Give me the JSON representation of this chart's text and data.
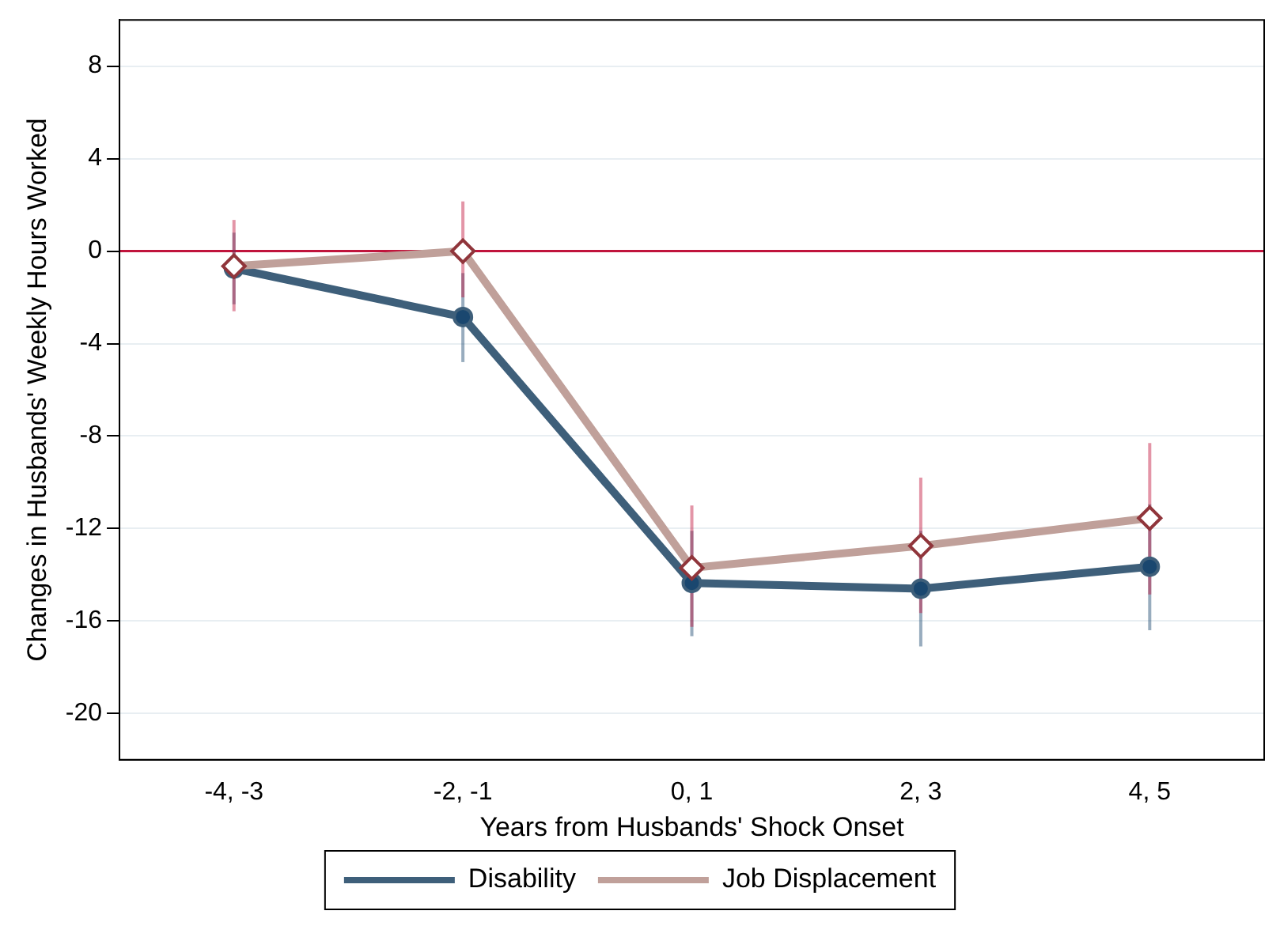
{
  "chart_data": {
    "type": "line",
    "xlabel": "Years from Husbands' Shock Onset",
    "ylabel": "Changes in Husbands' Weekly Hours Worked",
    "categories": [
      "-4, -3",
      "-2, -1",
      "0, 1",
      "2, 3",
      "4, 5"
    ],
    "series": [
      {
        "name": "Disability",
        "color": "#3e5f7a",
        "marker": "circle",
        "values": [
          -0.75,
          -2.85,
          -14.35,
          -14.6,
          -13.65
        ],
        "errors": [
          [
            -2.3,
            0.8
          ],
          [
            -4.8,
            -0.95
          ],
          [
            -16.65,
            -12.1
          ],
          [
            -17.1,
            -12.1
          ],
          [
            -16.4,
            -10.95
          ]
        ]
      },
      {
        "name": "Job Displacement",
        "color": "#c0a09a",
        "marker": "diamond",
        "values": [
          -0.65,
          0,
          -13.7,
          -12.75,
          -11.55
        ],
        "errors": [
          [
            -2.6,
            1.35
          ],
          [
            -2.0,
            2.15
          ],
          [
            -16.25,
            -11.0
          ],
          [
            -15.65,
            -9.8
          ],
          [
            -14.85,
            -8.3
          ]
        ]
      }
    ],
    "ylim": [
      -22,
      10
    ],
    "yticks": [
      -20,
      -16,
      -12,
      -8,
      -4,
      0,
      4,
      8
    ],
    "grid": "y",
    "legend": "bottom",
    "ref_lines": [
      {
        "axis": "y",
        "value": 0,
        "color": "#c0143c"
      }
    ]
  }
}
